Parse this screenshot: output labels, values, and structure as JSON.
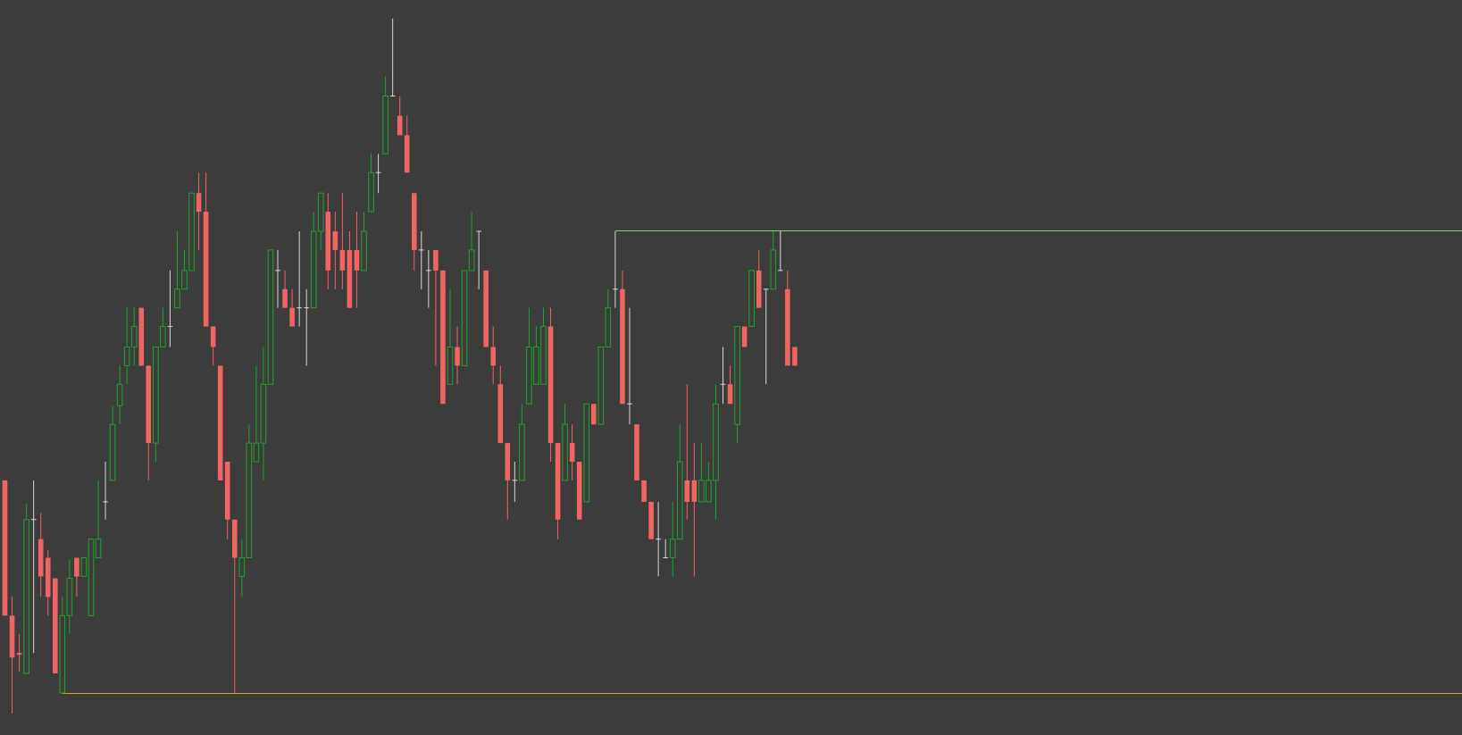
{
  "chart_data": {
    "type": "candlestick",
    "open": [
      285,
      140,
      100,
      78,
      243,
      222,
      202,
      180,
      57,
      140,
      202,
      182,
      140,
      202,
      262,
      285,
      365,
      408,
      428,
      470,
      408,
      325,
      428,
      450,
      470,
      490,
      510,
      593,
      573,
      450,
      408,
      305,
      243,
      182,
      202,
      305,
      325,
      388,
      510,
      490,
      470,
      470,
      470,
      470,
      552,
      573,
      552,
      532,
      532,
      532,
      510,
      573,
      615,
      635,
      697,
      676,
      655,
      593,
      532,
      510,
      532,
      510,
      388,
      428,
      408,
      510,
      552,
      510,
      428,
      388,
      325,
      285,
      285,
      367,
      388,
      388,
      450,
      325,
      285,
      325,
      305,
      262,
      367,
      345,
      428,
      490,
      490,
      367,
      345,
      285,
      262,
      222,
      202,
      202,
      222,
      285,
      285,
      262,
      262,
      285,
      388,
      388,
      345,
      450,
      450,
      510,
      490,
      490,
      510,
      490,
      428
    ],
    "high": [
      285,
      160,
      120,
      260,
      285,
      250,
      210,
      180,
      160,
      200,
      202,
      202,
      222,
      285,
      305,
      365,
      408,
      470,
      470,
      470,
      408,
      428,
      470,
      510,
      552,
      532,
      593,
      615,
      615,
      450,
      408,
      305,
      243,
      222,
      345,
      408,
      428,
      532,
      532,
      510,
      490,
      552,
      490,
      573,
      593,
      593,
      573,
      593,
      552,
      573,
      573,
      635,
      635,
      718,
      780,
      697,
      676,
      593,
      552,
      532,
      532,
      510,
      490,
      450,
      510,
      573,
      552,
      510,
      450,
      408,
      325,
      305,
      367,
      470,
      450,
      470,
      470,
      325,
      367,
      345,
      305,
      367,
      367,
      428,
      490,
      552,
      510,
      470,
      345,
      285,
      262,
      262,
      222,
      262,
      345,
      388,
      325,
      325,
      305,
      388,
      428,
      408,
      450,
      450,
      510,
      532,
      490,
      552,
      552,
      510,
      428
    ],
    "low": [
      140,
      35,
      80,
      78,
      100,
      160,
      140,
      78,
      57,
      120,
      160,
      182,
      140,
      202,
      243,
      285,
      345,
      388,
      408,
      408,
      285,
      305,
      428,
      428,
      470,
      490,
      510,
      532,
      450,
      408,
      285,
      222,
      57,
      160,
      202,
      305,
      285,
      388,
      470,
      470,
      450,
      450,
      408,
      470,
      532,
      490,
      490,
      490,
      470,
      470,
      510,
      573,
      593,
      635,
      697,
      655,
      615,
      510,
      490,
      470,
      408,
      367,
      388,
      388,
      408,
      510,
      490,
      428,
      388,
      325,
      243,
      262,
      285,
      367,
      388,
      388,
      305,
      222,
      285,
      285,
      243,
      262,
      345,
      345,
      428,
      470,
      367,
      345,
      285,
      262,
      222,
      182,
      202,
      182,
      222,
      243,
      182,
      262,
      262,
      243,
      367,
      367,
      325,
      428,
      450,
      470,
      388,
      490,
      510,
      408,
      408
    ],
    "close": [
      140,
      95,
      98,
      243,
      243,
      182,
      160,
      78,
      140,
      180,
      182,
      202,
      222,
      222,
      262,
      345,
      388,
      428,
      450,
      408,
      325,
      428,
      450,
      450,
      490,
      510,
      593,
      573,
      450,
      428,
      285,
      243,
      202,
      202,
      325,
      325,
      388,
      532,
      510,
      470,
      450,
      470,
      470,
      552,
      593,
      510,
      532,
      510,
      470,
      510,
      552,
      615,
      615,
      697,
      697,
      655,
      615,
      532,
      532,
      510,
      510,
      367,
      428,
      408,
      510,
      532,
      552,
      428,
      408,
      325,
      285,
      285,
      345,
      428,
      428,
      450,
      325,
      243,
      345,
      305,
      243,
      367,
      345,
      428,
      470,
      490,
      367,
      367,
      285,
      262,
      222,
      222,
      202,
      222,
      305,
      262,
      262,
      285,
      285,
      367,
      388,
      367,
      450,
      428,
      510,
      470,
      490,
      532,
      510,
      408,
      408
    ],
    "ylim": [
      12,
      800
    ],
    "up_color": "#1fa52a",
    "down_color": "#f06464",
    "doji_color": "#d8d8d8",
    "levels": [
      {
        "value": 553,
        "color": "#7fd67f",
        "start": 85
      },
      {
        "value": 57,
        "color": "#e8a317",
        "start": 8
      }
    ]
  }
}
